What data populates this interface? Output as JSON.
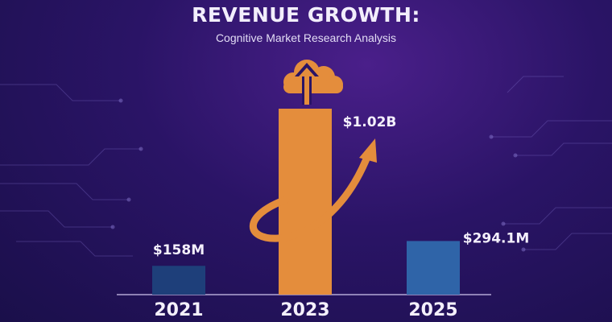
{
  "title": "REVENUE GROWTH:",
  "subtitle": "Cognitive Market Research Analysis",
  "colors": {
    "bar_2021": "#1e3f7a",
    "bar_2023": "#e48d3c",
    "bar_2025": "#2f64a8",
    "accent": "#e48d3c"
  },
  "icons": [
    "cloud-upload-icon",
    "growth-arrow-icon"
  ],
  "chart_data": {
    "type": "bar",
    "categories": [
      "2021",
      "2023",
      "2025"
    ],
    "values": [
      158,
      1020,
      294.1
    ],
    "value_labels": [
      "$158M",
      "$1.02B",
      "$294.1M"
    ],
    "units": "USD millions",
    "title": "REVENUE GROWTH:",
    "subtitle": "Cognitive Market Research Analysis",
    "xlabel": "",
    "ylabel": "",
    "ylim": [
      0,
      1020
    ],
    "grid": false,
    "legend": "none"
  }
}
